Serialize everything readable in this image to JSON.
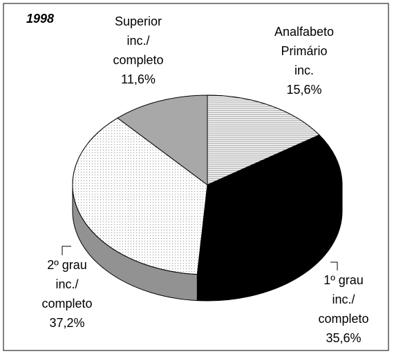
{
  "chart_data": {
    "type": "pie3d",
    "title": "1998",
    "categories": [
      [
        "Analfabeto",
        "Primário",
        "inc."
      ],
      [
        "1º grau",
        "inc./",
        "completo"
      ],
      [
        "2º grau",
        "inc./",
        "completo"
      ],
      [
        "Superior",
        "inc./",
        "completo"
      ]
    ],
    "values": [
      15.6,
      35.6,
      37.2,
      11.6
    ],
    "value_labels": [
      "15,6%",
      "35,6%",
      "37,2%",
      "11,6%"
    ],
    "colors": [
      "#e4e4e4",
      "#000000",
      "#f4f4f4",
      "#a8a8a8"
    ]
  }
}
